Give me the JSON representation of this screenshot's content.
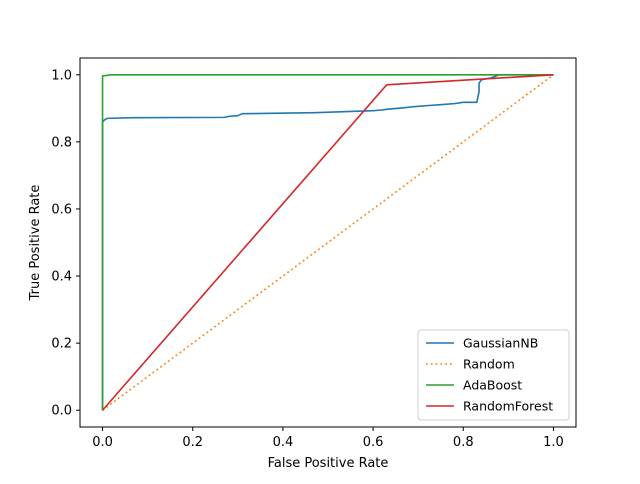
{
  "chart_data": {
    "type": "line",
    "title": "",
    "xlabel": "False Positive Rate",
    "ylabel": "True Positive Rate",
    "xlim": [
      -0.05,
      1.05
    ],
    "ylim": [
      -0.05,
      1.05
    ],
    "xticks": [
      0.0,
      0.2,
      0.4,
      0.6,
      0.8,
      1.0
    ],
    "yticks": [
      0.0,
      0.2,
      0.4,
      0.6,
      0.8,
      1.0
    ],
    "xtick_labels": [
      "0.0",
      "0.2",
      "0.4",
      "0.6",
      "0.8",
      "1.0"
    ],
    "ytick_labels": [
      "0.0",
      "0.2",
      "0.4",
      "0.6",
      "0.8",
      "1.0"
    ],
    "grid": false,
    "legend_position": "lower-right",
    "series": [
      {
        "name": "GaussianNB",
        "color": "#1f77b4",
        "style": "solid",
        "x": [
          0.0,
          0.0,
          0.002,
          0.005,
          0.01,
          0.07,
          0.27,
          0.28,
          0.3,
          0.31,
          0.47,
          0.6,
          0.62,
          0.63,
          0.67,
          0.69,
          0.72,
          0.76,
          0.78,
          0.8,
          0.83,
          0.835,
          0.835,
          0.84,
          0.85,
          0.86,
          0.87,
          0.88,
          0.9,
          1.0
        ],
        "y": [
          0.0,
          0.86,
          0.862,
          0.866,
          0.87,
          0.872,
          0.873,
          0.876,
          0.878,
          0.884,
          0.887,
          0.893,
          0.895,
          0.897,
          0.902,
          0.905,
          0.908,
          0.912,
          0.914,
          0.918,
          0.918,
          0.95,
          0.975,
          0.985,
          0.988,
          0.99,
          0.995,
          1.0,
          1.0,
          1.0
        ]
      },
      {
        "name": "Random",
        "color": "#ff7f0e",
        "style": "dotted",
        "x": [
          0.0,
          1.0
        ],
        "y": [
          0.0,
          1.0
        ]
      },
      {
        "name": "AdaBoost",
        "color": "#2ca02c",
        "style": "solid",
        "x": [
          0.0,
          0.0,
          0.01,
          0.02,
          1.0
        ],
        "y": [
          0.0,
          0.997,
          0.998,
          1.0,
          1.0
        ]
      },
      {
        "name": "RandomForest",
        "color": "#d62728",
        "style": "solid",
        "x": [
          0.0,
          0.63,
          1.0
        ],
        "y": [
          0.0,
          0.97,
          1.0
        ]
      }
    ]
  }
}
